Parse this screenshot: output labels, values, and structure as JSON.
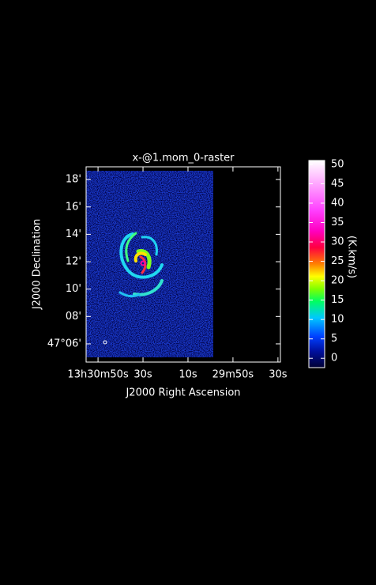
{
  "chart_data": [
    {
      "type": "image",
      "title": "x-@1.mom_0-raster",
      "xlabel": "J2000 Right Ascension",
      "ylabel": "J2000 Declination",
      "xlim": [
        55.3,
        -31.1
      ],
      "xticks": [
        {
          "value": 50,
          "label": "13h30m50s"
        },
        {
          "value": 30,
          "label": "30s"
        },
        {
          "value": 10,
          "label": "10s"
        },
        {
          "value": -10,
          "label": "29m50s"
        },
        {
          "value": -30,
          "label": "30s"
        }
      ],
      "ylim": [
        4.67,
        18.93
      ],
      "yticks": [
        {
          "value": 18,
          "label": "18'"
        },
        {
          "value": 16,
          "label": "16'"
        },
        {
          "value": 14,
          "label": "14'"
        },
        {
          "value": 12,
          "label": "12'"
        },
        {
          "value": 10,
          "label": "10'"
        },
        {
          "value": 8,
          "label": "08'"
        },
        {
          "value": 6,
          "label": "47°06'"
        }
      ]
    },
    {
      "type": "colorbar",
      "label": "(K.km/s)",
      "ylim": [
        -2.4,
        51
      ],
      "yticks": [
        0,
        5,
        10,
        15,
        20,
        25,
        30,
        35,
        40,
        45,
        50
      ]
    }
  ]
}
